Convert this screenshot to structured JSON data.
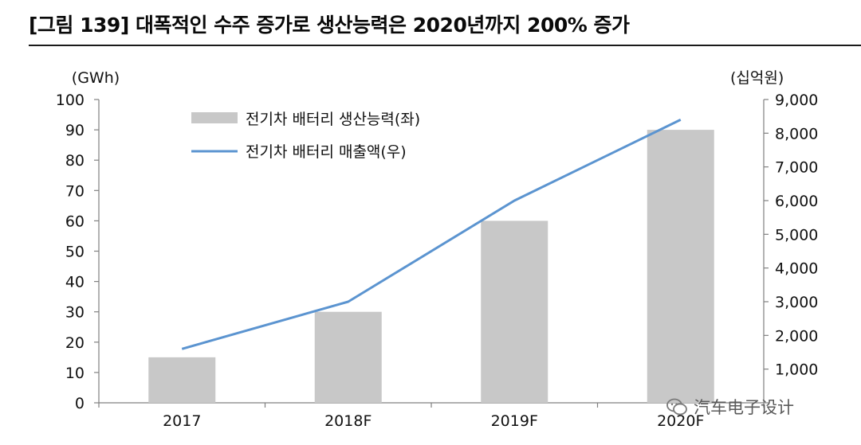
{
  "figure_title": "[그림 139] 대폭적인 수주 증가로 생산능력은 2020년까지 200% 증가",
  "watermark": {
    "text": "汽车电子设计",
    "icon": "wechat-icon"
  },
  "chart_data": {
    "type": "bar",
    "categories": [
      "2017",
      "2018F",
      "2019F",
      "2020F"
    ],
    "series": [
      {
        "name": "전기차 배터리 생산능력(좌)",
        "type": "bar",
        "axis": "left",
        "values": [
          15,
          30,
          60,
          90
        ]
      },
      {
        "name": "전기차 배터리 매출액(우)",
        "type": "line",
        "axis": "right",
        "values": [
          1600,
          3000,
          6000,
          8400
        ]
      }
    ],
    "y_left": {
      "unit_label": "(GWh)",
      "min": 0,
      "max": 100,
      "ticks": [
        "0",
        "10",
        "20",
        "30",
        "40",
        "50",
        "60",
        "70",
        "80",
        "90",
        "100"
      ]
    },
    "y_right": {
      "unit_label": "(십억원)",
      "min": 0,
      "max": 9000,
      "ticks": [
        "",
        "1,000",
        "2,000",
        "3,000",
        "4,000",
        "5,000",
        "6,000",
        "7,000",
        "8,000",
        "9,000"
      ]
    },
    "grid": false,
    "legend_position": "top-left",
    "colors": {
      "bar": "#c8c8c8",
      "line": "#5b94d0",
      "axis": "#808080",
      "text": "#111111"
    }
  }
}
